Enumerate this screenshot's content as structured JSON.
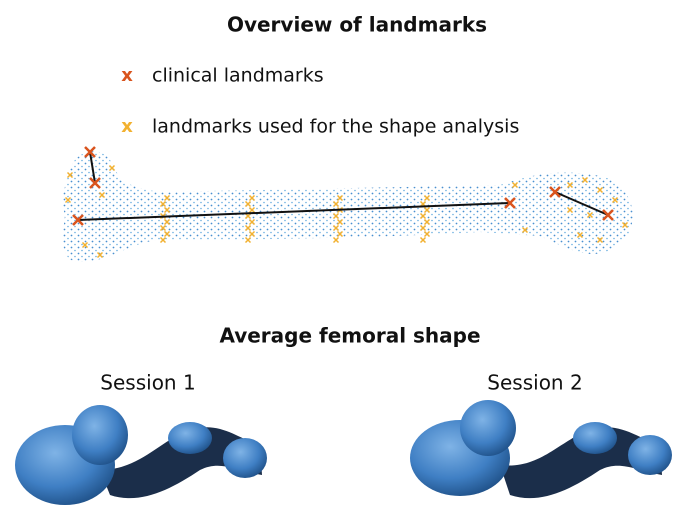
{
  "overview": {
    "title": "Overview of landmarks",
    "legend": [
      {
        "marker": "x",
        "label": "clinical landmarks"
      },
      {
        "marker": "x",
        "label": "landmarks used for the shape analysis"
      }
    ]
  },
  "average": {
    "title": "Average femoral shape",
    "panels": [
      {
        "label": "Session 1"
      },
      {
        "label": "Session 2"
      }
    ]
  }
}
